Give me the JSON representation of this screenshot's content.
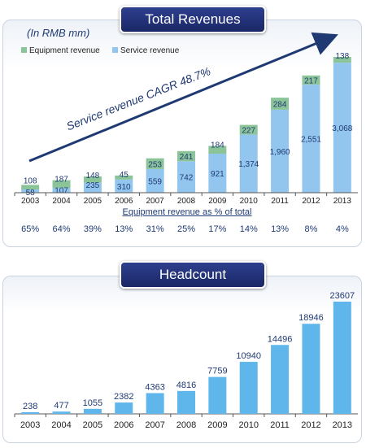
{
  "chart_data": [
    {
      "type": "bar",
      "title": "Total Revenues",
      "unit_label": "(In RMB mm)",
      "categories": [
        "2003",
        "2004",
        "2005",
        "2006",
        "2007",
        "2008",
        "2009",
        "2010",
        "2011",
        "2012",
        "2013"
      ],
      "series": [
        {
          "name": "Service revenue",
          "color": "#93c6ee",
          "values": [
            58,
            107,
            235,
            310,
            559,
            742,
            921,
            1374,
            1960,
            2551,
            3068
          ],
          "labels": [
            "58",
            "107",
            "235",
            "310",
            "559",
            "742",
            "921",
            "1,374",
            "1,960",
            "2,551",
            "3,068"
          ]
        },
        {
          "name": "Equipment revenue",
          "color": "#8cc49a",
          "values": [
            108,
            187,
            148,
            45,
            253,
            241,
            184,
            227,
            284,
            217,
            138
          ],
          "labels": [
            "108",
            "187",
            "148",
            "45",
            "253",
            "241",
            "184",
            "227",
            "284",
            "217",
            "138"
          ]
        }
      ],
      "stacked": true,
      "annotation": "Service revenue CAGR 48.7%",
      "subtitle": "Equipment revenue as % of total",
      "percent_row": [
        "65%",
        "64%",
        "39%",
        "13%",
        "31%",
        "25%",
        "17%",
        "14%",
        "13%",
        "8%",
        "4%"
      ],
      "ylim": [
        0,
        3300
      ],
      "legend_position": "top-left"
    },
    {
      "type": "bar",
      "title": "Headcount",
      "categories": [
        "2003",
        "2004",
        "2005",
        "2006",
        "2007",
        "2008",
        "2009",
        "2010",
        "2011",
        "2012",
        "2013"
      ],
      "values": [
        238,
        477,
        1055,
        2382,
        4363,
        4816,
        7759,
        10940,
        14496,
        18946,
        23607
      ],
      "color": "#5eb6ea",
      "ylim": [
        0,
        25000
      ]
    }
  ]
}
